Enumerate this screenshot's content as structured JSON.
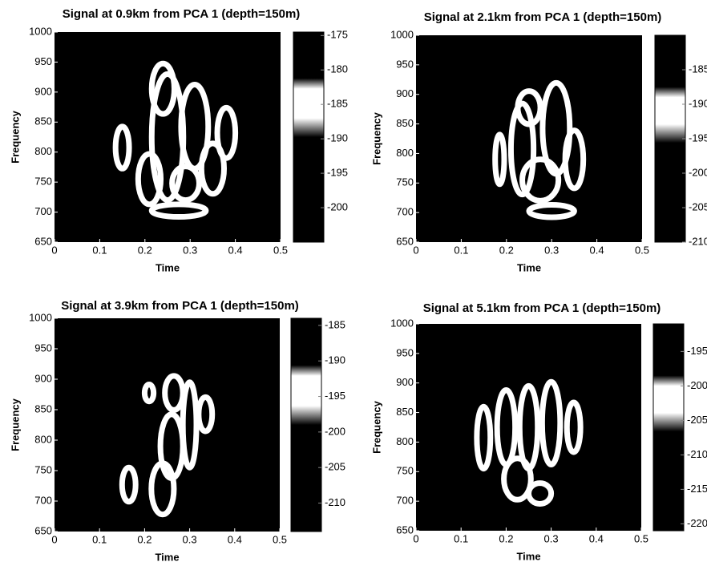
{
  "chart_data": [
    {
      "type": "spectrogram",
      "title": "Signal at 0.9km from PCA 1 (depth=150m)",
      "x_label": "Time",
      "y_label": "Frequency",
      "xlim": [
        0,
        0.5
      ],
      "xticks": [
        0,
        0.1,
        0.2,
        0.3,
        0.4,
        0.5
      ],
      "ylim": [
        650,
        1000
      ],
      "yticks": [
        650,
        700,
        750,
        800,
        850,
        900,
        950,
        1000
      ],
      "clim": [
        -205,
        -174.5
      ],
      "cticks": [
        -200,
        -195,
        -190,
        -185,
        -180,
        -175
      ]
    },
    {
      "type": "spectrogram",
      "title": "Signal at 2.1km from PCA 1 (depth=150m)",
      "x_label": "Time",
      "y_label": "Frequency",
      "xlim": [
        0,
        0.5
      ],
      "xticks": [
        0,
        0.1,
        0.2,
        0.3,
        0.4,
        0.5
      ],
      "ylim": [
        650,
        1000
      ],
      "yticks": [
        650,
        700,
        750,
        800,
        850,
        900,
        950,
        1000
      ],
      "clim": [
        -210,
        -180
      ],
      "cticks": [
        -210,
        -205,
        -200,
        -195,
        -190,
        -185
      ]
    },
    {
      "type": "spectrogram",
      "title": "Signal at 3.9km from PCA 1 (depth=150m)",
      "x_label": "Time",
      "y_label": "Frequency",
      "xlim": [
        0,
        0.5
      ],
      "xticks": [
        0,
        0.1,
        0.2,
        0.3,
        0.4,
        0.5
      ],
      "ylim": [
        650,
        1000
      ],
      "yticks": [
        650,
        700,
        750,
        800,
        850,
        900,
        950,
        1000
      ],
      "clim": [
        -214,
        -184
      ],
      "cticks": [
        -210,
        -205,
        -200,
        -195,
        -190,
        -185
      ]
    },
    {
      "type": "spectrogram",
      "title": "Signal at 5.1km from PCA 1 (depth=150m)",
      "x_label": "Time",
      "y_label": "Frequency",
      "xlim": [
        0,
        0.5
      ],
      "xticks": [
        0,
        0.1,
        0.2,
        0.3,
        0.4,
        0.5
      ],
      "ylim": [
        650,
        1000
      ],
      "yticks": [
        650,
        700,
        750,
        800,
        850,
        900,
        950,
        1000
      ],
      "clim": [
        -221,
        -191
      ],
      "cticks": [
        -220,
        -215,
        -210,
        -205,
        -200,
        -195
      ]
    }
  ]
}
